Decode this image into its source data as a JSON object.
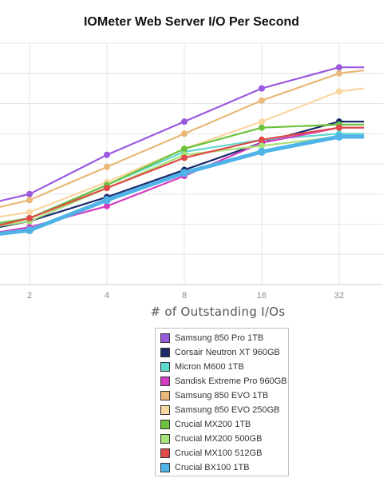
{
  "chart_data": {
    "type": "line",
    "title": "IOMeter Web Server I/O Per Second",
    "xlabel": "# of Outstanding I/Os",
    "ylabel": "",
    "x_scale": "log2",
    "xlim": [
      1,
      40
    ],
    "ylim": [
      0,
      8
    ],
    "grid": true,
    "legend_position": "bottom",
    "categories": [
      "2",
      "4",
      "8",
      "16",
      "32"
    ],
    "x": [
      1,
      2,
      4,
      8,
      16,
      32,
      40
    ],
    "series": [
      {
        "name": "Samsung 850 Pro 1TB",
        "color": "#9b59e0",
        "values": [
          2.4,
          3.0,
          4.3,
          5.4,
          6.5,
          7.2,
          7.2
        ]
      },
      {
        "name": "Corsair Neutron XT 960GB",
        "color": "#1c2b6b",
        "values": [
          1.6,
          2.1,
          2.9,
          3.8,
          4.7,
          5.4,
          5.4
        ]
      },
      {
        "name": "Micron M600 1TB",
        "color": "#5fd8d0",
        "values": [
          1.7,
          2.2,
          3.3,
          4.4,
          4.8,
          5.0,
          5.0
        ]
      },
      {
        "name": "Sandisk Extreme Pro 960GB",
        "color": "#d23cc0",
        "values": [
          1.5,
          1.9,
          2.6,
          3.6,
          4.7,
          5.2,
          5.2
        ]
      },
      {
        "name": "Samsung 850 EVO 1TB",
        "color": "#eab878",
        "values": [
          2.2,
          2.8,
          3.9,
          5.0,
          6.1,
          7.0,
          7.1
        ]
      },
      {
        "name": "Samsung 850 EVO 250GB",
        "color": "#fad6a0",
        "values": [
          2.0,
          2.4,
          3.4,
          4.5,
          5.4,
          6.4,
          6.5
        ]
      },
      {
        "name": "Crucial MX200 1TB",
        "color": "#6cc23c",
        "values": [
          1.8,
          2.2,
          3.3,
          4.5,
          5.2,
          5.3,
          5.3
        ]
      },
      {
        "name": "Crucial MX200 500GB",
        "color": "#a7e27a",
        "values": [
          1.7,
          2.1,
          3.2,
          4.3,
          4.6,
          4.9,
          4.9
        ]
      },
      {
        "name": "Crucial MX100 512GB",
        "color": "#e04a4a",
        "values": [
          1.6,
          2.2,
          3.2,
          4.2,
          4.8,
          5.2,
          5.2
        ]
      },
      {
        "name": "Crucial BX100 1TB",
        "color": "#4fb3e8",
        "values": [
          1.5,
          1.8,
          2.8,
          3.7,
          4.4,
          4.9,
          4.9
        ]
      }
    ]
  }
}
